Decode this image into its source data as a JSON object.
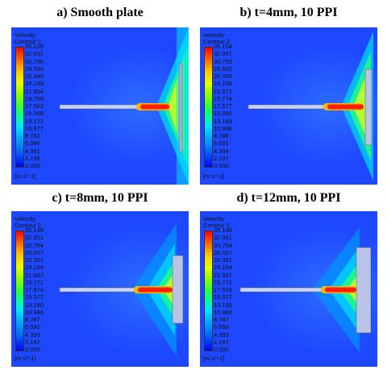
{
  "panels": [
    {
      "title": "a) Smooth plate",
      "legend_title": [
        "Velocity",
        "Contour 2"
      ],
      "ticks": [
        "35.126",
        "32.931",
        "30.736",
        "28.540",
        "26.345",
        "24.149",
        "21.954",
        "19.759",
        "17.563",
        "15.368",
        "13.172",
        "10.977",
        "8.782",
        "6.586",
        "4.391",
        "2.195",
        "0.000"
      ],
      "unit": "[m s^-1]"
    },
    {
      "title": "b) t=4mm, 10 PPI",
      "legend_title": [
        "Velocity",
        "Contour 2"
      ],
      "ticks": [
        "35.154",
        "32.957",
        "30.759",
        "28.562",
        "26.365",
        "24.168",
        "21.971",
        "19.774",
        "17.577",
        "15.380",
        "13.183",
        "10.986",
        "8.788",
        "6.591",
        "4.394",
        "2.197",
        "0.000"
      ],
      "unit": "[m s^-1]"
    },
    {
      "title": "c) t=8mm, 10 PPI",
      "legend_title": [
        "Velocity",
        "Contour 2"
      ],
      "ticks": [
        "35.148",
        "32.951",
        "30.754",
        "28.557",
        "26.361",
        "24.164",
        "21.967",
        "19.771",
        "17.574",
        "15.377",
        "13.180",
        "10.984",
        "8.787",
        "6.590",
        "4.393",
        "2.197",
        "0.000"
      ],
      "unit": "[m s^-1]"
    },
    {
      "title": "d) t=12mm, 10 PPI",
      "legend_title": [
        "Velocity",
        "Contour 2"
      ],
      "ticks": [
        "35.148",
        "32.951",
        "30.754",
        "28.557",
        "26.361",
        "24.164",
        "21.967",
        "19.771",
        "17.574",
        "15.377",
        "13.180",
        "10.984",
        "8.787",
        "6.590",
        "4.393",
        "2.197",
        "0.000"
      ],
      "unit": "[m s^-1]"
    }
  ],
  "colors": {
    "background_field": "#1e48ff",
    "jet_core": "#ff0000",
    "foam_plate": "#b9c3e6"
  }
}
